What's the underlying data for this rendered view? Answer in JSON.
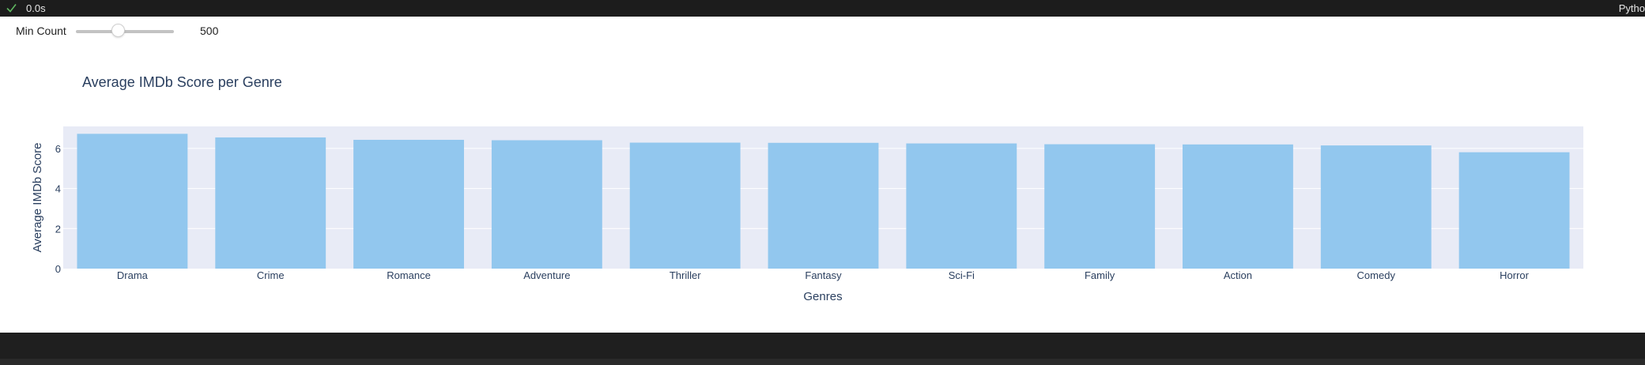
{
  "status": {
    "elapsed": "0.0s",
    "kernel": "Pytho",
    "check_color": "#5fb760"
  },
  "slider": {
    "label": "Min Count",
    "value": "500",
    "fraction": 0.42
  },
  "colors": {
    "bar": "#92c7ee",
    "plot_bg": "#e8ebf6",
    "text": "#2a3f5f"
  },
  "chart_data": {
    "type": "bar",
    "title": "Average IMDb Score per Genre",
    "xlabel": "Genres",
    "ylabel": "Average IMDb Score",
    "categories": [
      "Drama",
      "Crime",
      "Romance",
      "Adventure",
      "Thriller",
      "Fantasy",
      "Sci-Fi",
      "Family",
      "Action",
      "Comedy",
      "Horror"
    ],
    "values": [
      6.73,
      6.55,
      6.43,
      6.41,
      6.29,
      6.28,
      6.25,
      6.21,
      6.2,
      6.15,
      5.81
    ],
    "ylim": [
      0,
      7.1
    ],
    "yticks": [
      0,
      2,
      4,
      6
    ],
    "grid": true,
    "legend": "none"
  }
}
